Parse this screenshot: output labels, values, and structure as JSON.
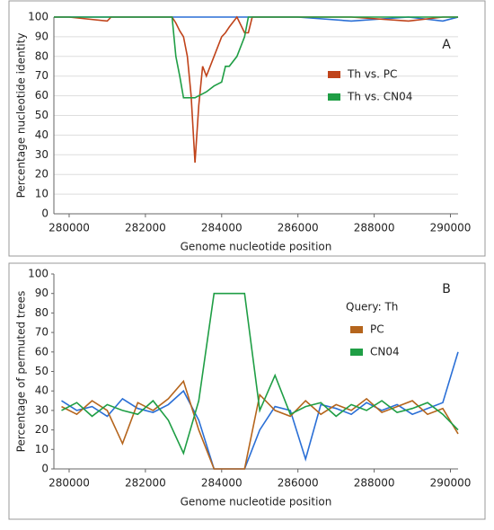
{
  "chart_data": [
    {
      "type": "line",
      "panel_label": "A",
      "x_label": "Genome nucleotide position",
      "y_label": "Percentage nucleotide identity",
      "x": [
        279600,
        280000,
        281000,
        281100,
        282700,
        282800,
        282900,
        283000,
        283100,
        283200,
        283300,
        283400,
        283500,
        283600,
        283800,
        284000,
        284100,
        284200,
        284400,
        284600,
        284700,
        284800,
        286000,
        287400,
        288900,
        289800,
        290200
      ],
      "series": [
        {
          "color": "#2a6fd6",
          "values": [
            100,
            100,
            100,
            100,
            100,
            100,
            100,
            100,
            100,
            100,
            100,
            100,
            100,
            100,
            100,
            100,
            100,
            100,
            100,
            100,
            100,
            100,
            100,
            98,
            100,
            98,
            100
          ]
        },
        {
          "name": "Th vs. PC",
          "color": "#c0431a",
          "values": [
            100,
            100,
            98,
            100,
            100,
            97,
            93,
            90,
            80,
            60,
            26,
            55,
            75,
            70,
            80,
            90,
            92,
            95,
            100,
            92,
            92,
            100,
            100,
            100,
            98,
            100,
            100
          ]
        },
        {
          "name": "Th vs. CN04",
          "color": "#1f9e45",
          "values": [
            100,
            100,
            100,
            100,
            100,
            80,
            70,
            59,
            59,
            59,
            59,
            60,
            61,
            62,
            65,
            67,
            75,
            75,
            80,
            90,
            100,
            100,
            100,
            100,
            100,
            100,
            100
          ]
        }
      ],
      "xlim": [
        279600,
        290200
      ],
      "xticks": [
        280000,
        282000,
        284000,
        286000,
        288000,
        290000
      ],
      "ylim": [
        0,
        100
      ],
      "yticks": [
        0,
        10,
        20,
        30,
        40,
        50,
        60,
        70,
        80,
        90,
        100
      ],
      "grid": true
    },
    {
      "type": "line",
      "panel_label": "B",
      "legend_title": "Query: Th",
      "x_label": "Genome nucleotide position",
      "y_label": "Percentage of permuted trees",
      "x": [
        279800,
        280200,
        280600,
        281000,
        281400,
        281800,
        282200,
        282600,
        283000,
        283400,
        283800,
        284200,
        284600,
        285000,
        285400,
        285800,
        286200,
        286600,
        287000,
        287400,
        287800,
        288200,
        288600,
        289000,
        289400,
        289800,
        290200
      ],
      "series": [
        {
          "color": "#2a6fd6",
          "values": [
            35,
            30,
            32,
            27,
            36,
            31,
            29,
            33,
            40,
            25,
            0,
            0,
            0,
            20,
            32,
            30,
            5,
            33,
            31,
            28,
            34,
            30,
            33,
            28,
            31,
            34,
            60
          ]
        },
        {
          "name": "PC",
          "color": "#b5651d",
          "values": [
            32,
            28,
            35,
            30,
            13,
            34,
            30,
            36,
            45,
            20,
            0,
            0,
            0,
            38,
            30,
            27,
            35,
            28,
            33,
            30,
            36,
            29,
            32,
            35,
            28,
            31,
            18
          ]
        },
        {
          "name": "CN04",
          "color": "#1f9e45",
          "values": [
            30,
            34,
            27,
            33,
            30,
            28,
            35,
            25,
            8,
            35,
            90,
            90,
            90,
            30,
            48,
            28,
            32,
            34,
            27,
            33,
            30,
            35,
            29,
            31,
            34,
            28,
            20
          ]
        }
      ],
      "xlim": [
        279600,
        290200
      ],
      "xticks": [
        280000,
        282000,
        284000,
        286000,
        288000,
        290000
      ],
      "ylim": [
        0,
        100
      ],
      "yticks": [
        0,
        10,
        20,
        30,
        40,
        50,
        60,
        70,
        80,
        90,
        100
      ],
      "grid": false
    }
  ]
}
